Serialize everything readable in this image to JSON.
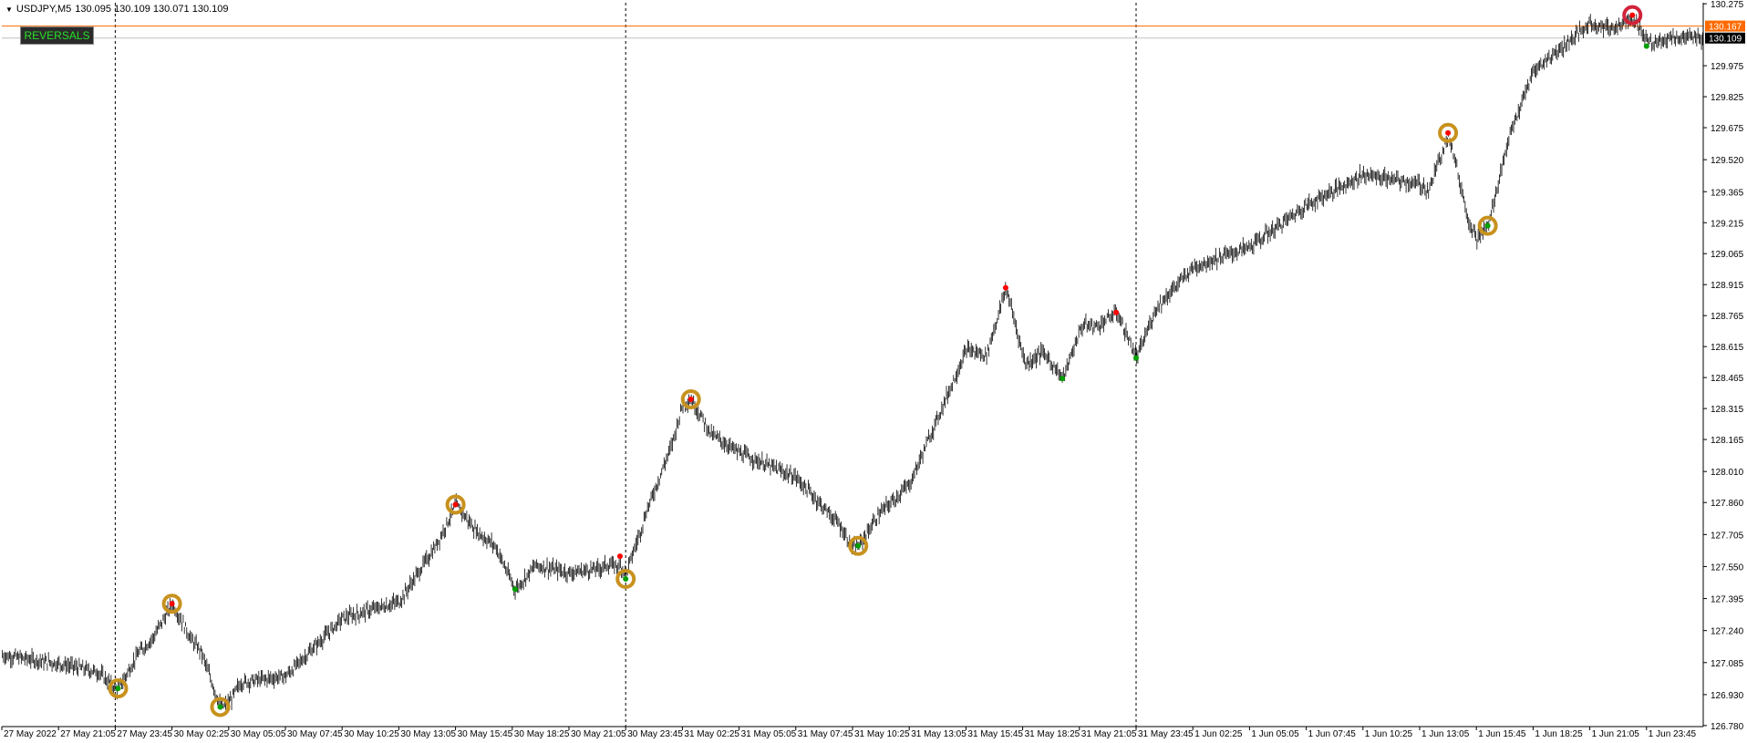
{
  "header": {
    "symbol": "USDJPY,M5",
    "ohlc": "130.095 130.109 130.071 130.109"
  },
  "indicator_button": {
    "label": "REVERSALS"
  },
  "colors": {
    "price_bars": "#000000",
    "bid_line": "#ff6a00",
    "last_line": "#c0c0c0",
    "peak_dot": "#ff0000",
    "trough_dot": "#00a000",
    "ring_gold": "#c8921e",
    "ring_red": "#d0233a"
  },
  "chart_data": {
    "type": "line",
    "x": [
      "27 May 2022",
      "27 May 21:05",
      "27 May 23:45",
      "30 May 02:25",
      "30 May 05:05",
      "30 May 07:45",
      "30 May 10:25",
      "30 May 13:05",
      "30 May 15:45",
      "30 May 18:25",
      "30 May 21:05",
      "30 May 23:45",
      "31 May 02:25",
      "31 May 05:05",
      "31 May 07:45",
      "31 May 10:25",
      "31 May 13:05",
      "31 May 15:45",
      "31 May 18:25",
      "31 May 21:05",
      "31 May 23:45",
      "1 Jun 02:25",
      "1 Jun 05:05",
      "1 Jun 07:45",
      "1 Jun 10:25",
      "1 Jun 13:05",
      "1 Jun 15:45",
      "1 Jun 18:25",
      "1 Jun 21:05",
      "1 Jun 23:45"
    ],
    "series": [
      {
        "values": [
          127.12,
          127.08,
          127.02,
          127.3,
          126.98,
          127.02,
          127.3,
          127.38,
          127.8,
          127.58,
          127.52,
          127.56,
          128.28,
          128.1,
          127.98,
          127.68,
          127.95,
          128.6,
          128.52,
          128.72,
          128.7,
          129.0,
          129.1,
          129.3,
          129.45,
          129.4,
          129.2,
          129.95,
          130.18,
          130.11
        ]
      }
    ],
    "y_ticks": [
      "130.275",
      "129.975",
      "129.825",
      "129.675",
      "129.520",
      "129.365",
      "129.215",
      "129.065",
      "128.915",
      "128.765",
      "128.615",
      "128.465",
      "128.315",
      "128.165",
      "128.010",
      "127.860",
      "127.705",
      "127.550",
      "127.395",
      "127.240",
      "127.085",
      "126.930",
      "126.780"
    ],
    "ylim": [
      126.775,
      130.28
    ],
    "bid_price": "130.167",
    "last_price": "130.109",
    "reversal_peaks": [
      {
        "t": 3.0,
        "price": 127.37,
        "ringed": true
      },
      {
        "t": 8.0,
        "price": 127.85,
        "ringed": true
      },
      {
        "t": 10.9,
        "price": 127.6,
        "ringed": false
      },
      {
        "t": 12.15,
        "price": 128.36,
        "ringed": true
      },
      {
        "t": 17.7,
        "price": 128.9,
        "ringed": false
      },
      {
        "t": 19.65,
        "price": 128.78,
        "ringed": false
      },
      {
        "t": 25.5,
        "price": 129.65,
        "ringed": true
      },
      {
        "t": 28.75,
        "price": 130.22,
        "ringed": true,
        "highlight": true
      }
    ],
    "reversal_troughs": [
      {
        "t": 2.05,
        "price": 126.96,
        "ringed": true
      },
      {
        "t": 3.85,
        "price": 126.87,
        "ringed": true
      },
      {
        "t": 9.05,
        "price": 127.44,
        "ringed": false
      },
      {
        "t": 11.0,
        "price": 127.49,
        "ringed": true
      },
      {
        "t": 15.1,
        "price": 127.65,
        "ringed": true
      },
      {
        "t": 18.7,
        "price": 128.46,
        "ringed": false
      },
      {
        "t": 20.0,
        "price": 128.56,
        "ringed": false
      },
      {
        "t": 26.2,
        "price": 129.2,
        "ringed": true
      },
      {
        "t": 29.0,
        "price": 130.07,
        "ringed": false
      }
    ],
    "day_separators": [
      2.0,
      11.0,
      20.0
    ],
    "grid": false
  }
}
